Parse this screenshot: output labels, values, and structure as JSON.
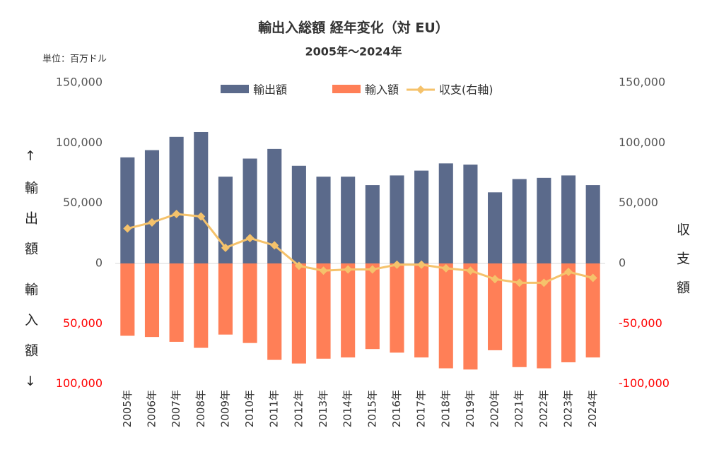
{
  "chart_data": {
    "type": "bar",
    "title": "輸出入総額 経年変化（対 EU）",
    "subtitle": "2005年～2024年",
    "unit_label": "単位：百万ドル",
    "y_label_top": "↑輸出額",
    "y_label_bottom": "輸入額↓",
    "y2_label": "収支額",
    "categories": [
      "2005年",
      "2006年",
      "2007年",
      "2008年",
      "2009年",
      "2010年",
      "2011年",
      "2012年",
      "2013年",
      "2014年",
      "2015年",
      "2016年",
      "2017年",
      "2018年",
      "2019年",
      "2020年",
      "2021年",
      "2022年",
      "2023年",
      "2024年"
    ],
    "series": [
      {
        "name": "輸出額",
        "type": "bar",
        "color": "#5b6a8b",
        "values": [
          88000,
          94000,
          105000,
          109000,
          72000,
          87000,
          95000,
          81000,
          72000,
          72000,
          65000,
          73000,
          77000,
          83000,
          82000,
          59000,
          70000,
          71000,
          73000,
          65000
        ]
      },
      {
        "name": "輸入額",
        "type": "bar",
        "color": "#ff7f57",
        "values": [
          -60000,
          -61000,
          -65000,
          -70000,
          -59000,
          -66000,
          -80000,
          -83000,
          -79000,
          -78000,
          -71000,
          -74000,
          -78000,
          -87000,
          -88000,
          -72000,
          -86000,
          -87000,
          -82000,
          -78000
        ]
      },
      {
        "name": "収支(右軸)",
        "type": "line",
        "axis": "y2",
        "color": "#f5c26b",
        "values": [
          29000,
          34000,
          41000,
          39000,
          13000,
          21000,
          15000,
          -2000,
          -6000,
          -5000,
          -5000,
          -1000,
          -1000,
          -4000,
          -6000,
          -13000,
          -16000,
          -16000,
          -7000,
          -12000
        ]
      }
    ],
    "ylim": [
      -100000,
      150000
    ],
    "yticks": [
      {
        "value": 150000,
        "label": "150,000"
      },
      {
        "value": 100000,
        "label": "100,000"
      },
      {
        "value": 50000,
        "label": "50,000"
      },
      0,
      {
        "value": -50000,
        "label": "50,000"
      },
      {
        "value": -100000,
        "label": "100,000"
      }
    ],
    "y2lim": [
      -100000,
      150000
    ],
    "y2ticks": [
      {
        "value": 150000,
        "label": "150,000"
      },
      {
        "value": 100000,
        "label": "100,000"
      },
      {
        "value": 50000,
        "label": "50,000"
      },
      0,
      {
        "value": -50000,
        "label": "-50,000"
      },
      {
        "value": -100000,
        "label": "-100,000"
      }
    ],
    "negative_tick_color": "#ff0000",
    "legend": "top"
  }
}
